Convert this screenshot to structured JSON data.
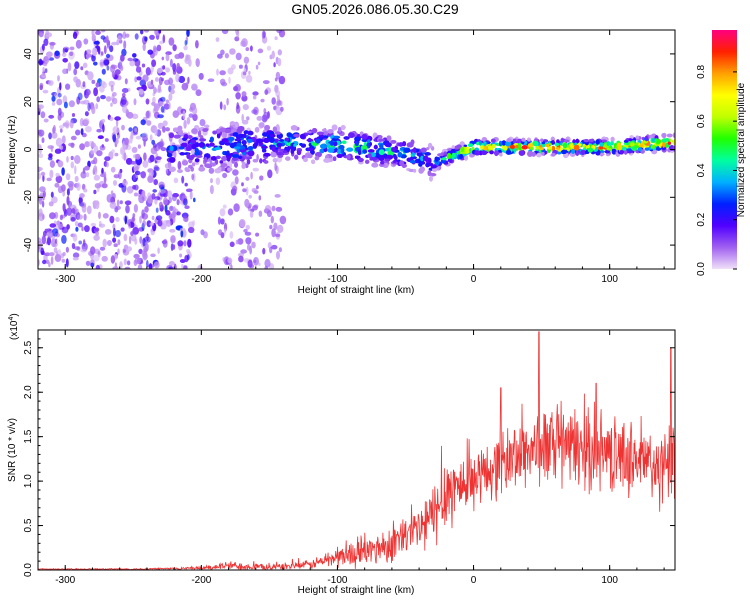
{
  "title": "GN05.2026.086.05.30.C29",
  "chart_data": [
    {
      "type": "heatmap",
      "title": "",
      "xlabel": "Height of straight line (km)",
      "ylabel": "Frequency (Hz)",
      "xlim": [
        -320,
        148
      ],
      "ylim": [
        -50,
        50
      ],
      "xticks": [
        -300,
        -200,
        -100,
        0,
        100
      ],
      "yticks": [
        -40,
        -20,
        0,
        20,
        40
      ],
      "colorbar": {
        "label": "Normalized spectral amplitude",
        "range": [
          0.0,
          0.97
        ],
        "ticks": [
          0.0,
          0.2,
          0.4,
          0.6,
          0.8
        ],
        "colors": [
          "#f0e0f8",
          "#a060f0",
          "#5000ff",
          "#0020ff",
          "#00b0ff",
          "#00ffa0",
          "#20ff00",
          "#c0ff00",
          "#ffff00",
          "#ffa000",
          "#ff2000",
          "#ff0080"
        ]
      },
      "ridge": {
        "description_points_x": [
          -220,
          -180,
          -150,
          -100,
          -60,
          -40,
          -30,
          0,
          50,
          100,
          148
        ],
        "center_freq": [
          0,
          1,
          3,
          2,
          -1,
          -3,
          -6,
          1,
          1,
          1,
          3
        ],
        "peak_amplitude": [
          0.35,
          0.4,
          0.45,
          0.55,
          0.5,
          0.45,
          0.4,
          0.9,
          0.92,
          0.93,
          0.95
        ]
      },
      "noise_region_x": [
        -320,
        -140
      ]
    },
    {
      "type": "line",
      "title": "",
      "xlabel": "Height of straight line (km)",
      "ylabel": "SNR (10 * v/v)",
      "y_scale_label": "(x10",
      "y_scale_exp": "4",
      "xlim": [
        -320,
        148
      ],
      "ylim": [
        0,
        2.7
      ],
      "xticks": [
        -300,
        -200,
        -100,
        0,
        100
      ],
      "yticks": [
        0.0,
        0.5,
        1.0,
        1.5,
        2.0,
        2.5
      ],
      "series": [
        {
          "name": "SNR",
          "color": "#ee3333",
          "envelope_x": [
            -320,
            -250,
            -200,
            -180,
            -150,
            -120,
            -100,
            -80,
            -60,
            -40,
            -30,
            -20,
            -10,
            0,
            20,
            40,
            60,
            80,
            100,
            120,
            140,
            148
          ],
          "envelope_mean": [
            0.01,
            0.01,
            0.02,
            0.05,
            0.03,
            0.06,
            0.15,
            0.2,
            0.3,
            0.45,
            0.6,
            0.9,
            0.95,
            1.0,
            1.2,
            1.35,
            1.4,
            1.35,
            1.3,
            1.25,
            1.1,
            1.2
          ],
          "envelope_spread": [
            0.005,
            0.01,
            0.02,
            0.06,
            0.04,
            0.06,
            0.15,
            0.2,
            0.25,
            0.35,
            0.45,
            0.55,
            0.45,
            0.35,
            0.45,
            0.5,
            0.55,
            0.55,
            0.5,
            0.5,
            0.55,
            0.6
          ],
          "peaks": [
            [
              48,
              2.68
            ],
            [
              145,
              2.5
            ],
            [
              20,
              2.05
            ],
            [
              90,
              2.1
            ]
          ]
        }
      ]
    }
  ]
}
